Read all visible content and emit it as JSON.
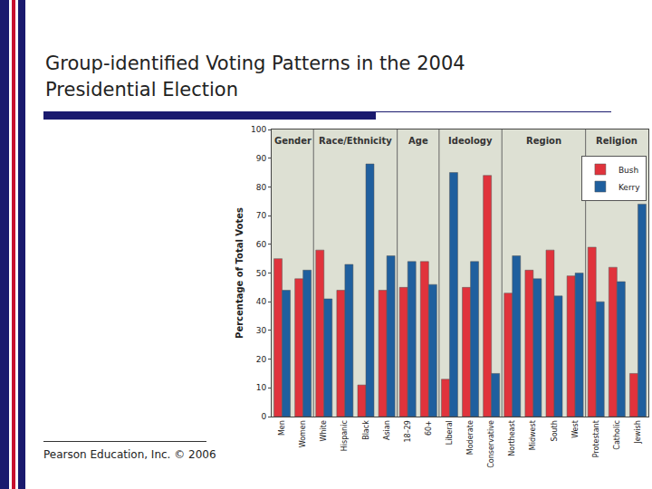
{
  "chart_data": {
    "type": "bar",
    "title": "Group-identified Voting Patterns in the 2004 Presidential Election",
    "y_label": "Percentage of Total Votes",
    "categories": [
      "Men",
      "Women",
      "White",
      "Hispanic",
      "Black",
      "Asian",
      "18–29",
      "60+",
      "Liberal",
      "Moderate",
      "Conservative",
      "Northeast",
      "Midwest",
      "South",
      "West",
      "Protestant",
      "Catholic",
      "Jewish"
    ],
    "groups": [
      {
        "label": "Gender",
        "members": [
          "Men",
          "Women"
        ]
      },
      {
        "label": "Race/Ethnicity",
        "members": [
          "White",
          "Hispanic",
          "Black",
          "Asian"
        ]
      },
      {
        "label": "Age",
        "members": [
          "18–29",
          "60+"
        ]
      },
      {
        "label": "Ideology",
        "members": [
          "Liberal",
          "Moderate",
          "Conservative"
        ]
      },
      {
        "label": "Region",
        "members": [
          "Northeast",
          "Midwest",
          "South",
          "West"
        ]
      },
      {
        "label": "Religion",
        "members": [
          "Protestant",
          "Catholic",
          "Jewish"
        ]
      }
    ],
    "series": [
      {
        "name": "Bush",
        "color": "#e0333c",
        "values": [
          55,
          48,
          58,
          44,
          11,
          44,
          45,
          54,
          13,
          45,
          84,
          43,
          51,
          58,
          49,
          59,
          52,
          15
        ]
      },
      {
        "name": "Kerry",
        "color": "#1f5f9e",
        "values": [
          44,
          51,
          41,
          53,
          88,
          56,
          54,
          46,
          85,
          54,
          15,
          56,
          48,
          42,
          50,
          40,
          47,
          74
        ]
      }
    ],
    "ylim": [
      0,
      100
    ],
    "yticks": [
      0,
      10,
      20,
      30,
      40,
      50,
      60,
      70,
      80,
      90,
      100
    ],
    "grid": false,
    "legend": "top right"
  },
  "footer": "Pearson Education, Inc. © 2006"
}
